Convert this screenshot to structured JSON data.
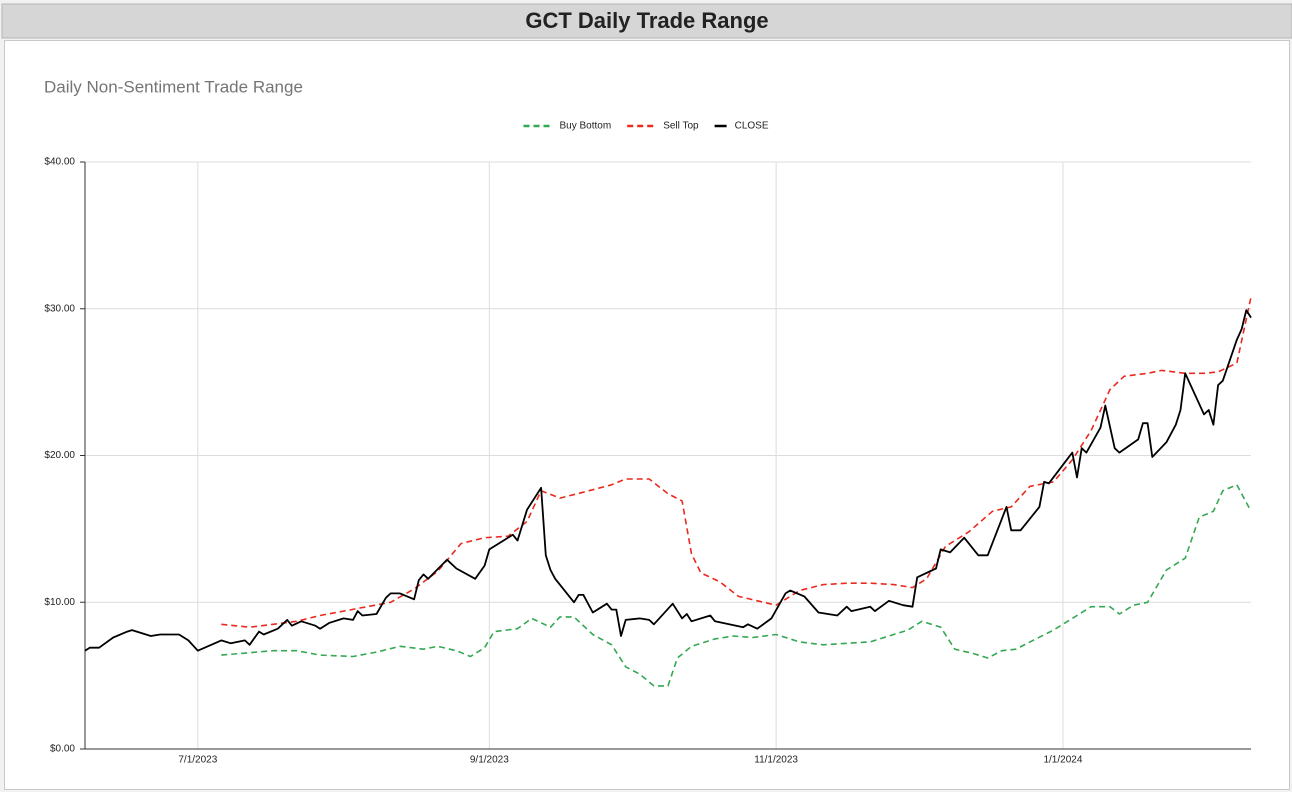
{
  "header": {
    "title": "GCT Daily Trade Range"
  },
  "chart_data": {
    "type": "line",
    "title": "Daily Non-Sentiment Trade Range",
    "legend": "top",
    "grid": true,
    "xlim": [
      "2023-06-07",
      "2024-02-10"
    ],
    "xticks": [
      {
        "value": "2023-07-01",
        "label": "7/1/2023"
      },
      {
        "value": "2023-09-01",
        "label": "9/1/2023"
      },
      {
        "value": "2023-11-01",
        "label": "11/1/2023"
      },
      {
        "value": "2024-01-01",
        "label": "1/1/2024"
      }
    ],
    "ylim": [
      0,
      40
    ],
    "yticks": [
      {
        "value": 0,
        "label": "$0.00"
      },
      {
        "value": 10,
        "label": "$10.00"
      },
      {
        "value": 20,
        "label": "$20.00"
      },
      {
        "value": 30,
        "label": "$30.00"
      },
      {
        "value": 40,
        "label": "$40.00"
      }
    ],
    "series": [
      {
        "name": "Buy Bottom",
        "color": "#34a853",
        "dash": "dashed",
        "x": [
          "2023-07-06",
          "2023-07-17",
          "2023-07-22",
          "2023-07-27",
          "2023-08-03",
          "2023-08-08",
          "2023-08-13",
          "2023-08-18",
          "2023-08-21",
          "2023-08-25",
          "2023-08-28",
          "2023-08-31",
          "2023-09-02",
          "2023-09-07",
          "2023-09-10",
          "2023-09-14",
          "2023-09-16",
          "2023-09-19",
          "2023-09-23",
          "2023-09-27",
          "2023-09-30",
          "2023-10-03",
          "2023-10-06",
          "2023-10-09",
          "2023-10-11",
          "2023-10-14",
          "2023-10-19",
          "2023-10-23",
          "2023-10-27",
          "2023-11-01",
          "2023-11-06",
          "2023-11-11",
          "2023-11-16",
          "2023-11-21",
          "2023-11-26",
          "2023-11-29",
          "2023-12-02",
          "2023-12-06",
          "2023-12-09",
          "2023-12-13",
          "2023-12-16",
          "2023-12-19",
          "2023-12-22",
          "2023-12-25",
          "2023-12-30",
          "2024-01-04",
          "2024-01-07",
          "2024-01-11",
          "2024-01-13",
          "2024-01-16",
          "2024-01-19",
          "2024-01-23",
          "2024-01-27",
          "2024-01-30",
          "2024-02-02",
          "2024-02-04",
          "2024-02-07",
          "2024-02-10"
        ],
        "values": [
          6.4,
          6.7,
          6.7,
          6.4,
          6.3,
          6.6,
          7.0,
          6.8,
          7.0,
          6.7,
          6.3,
          6.9,
          8.0,
          8.2,
          8.9,
          8.3,
          9.0,
          9.0,
          7.8,
          7.1,
          5.6,
          5.1,
          4.3,
          4.3,
          6.2,
          7.0,
          7.5,
          7.7,
          7.6,
          7.8,
          7.3,
          7.1,
          7.2,
          7.3,
          7.8,
          8.1,
          8.7,
          8.3,
          6.8,
          6.5,
          6.2,
          6.7,
          6.8,
          7.3,
          8.1,
          9.1,
          9.7,
          9.7,
          9.2,
          9.8,
          10.0,
          12.2,
          13.0,
          15.8,
          16.2,
          17.6,
          18.0,
          16.2
        ]
      },
      {
        "name": "Sell Top",
        "color": "#ea2a1f",
        "dash": "dashed",
        "x": [
          "2023-07-06",
          "2023-07-12",
          "2023-07-17",
          "2023-07-22",
          "2023-07-27",
          "2023-08-01",
          "2023-08-06",
          "2023-08-11",
          "2023-08-16",
          "2023-08-21",
          "2023-08-26",
          "2023-08-31",
          "2023-09-05",
          "2023-09-09",
          "2023-09-12",
          "2023-09-16",
          "2023-09-21",
          "2023-09-27",
          "2023-09-30",
          "2023-10-05",
          "2023-10-09",
          "2023-10-12",
          "2023-10-14",
          "2023-10-16",
          "2023-10-20",
          "2023-10-24",
          "2023-10-28",
          "2023-11-01",
          "2023-11-06",
          "2023-11-11",
          "2023-11-16",
          "2023-11-21",
          "2023-11-26",
          "2023-11-30",
          "2023-12-03",
          "2023-12-07",
          "2023-12-12",
          "2023-12-17",
          "2023-12-21",
          "2023-12-25",
          "2023-12-30",
          "2024-01-03",
          "2024-01-07",
          "2024-01-11",
          "2024-01-14",
          "2024-01-19",
          "2024-01-22",
          "2024-01-27",
          "2024-01-31",
          "2024-02-03",
          "2024-02-07",
          "2024-02-10"
        ],
        "values": [
          8.5,
          8.3,
          8.5,
          8.7,
          9.1,
          9.4,
          9.7,
          10.0,
          10.9,
          12.1,
          14.0,
          14.4,
          14.5,
          15.5,
          17.6,
          17.1,
          17.5,
          18.0,
          18.4,
          18.4,
          17.4,
          16.9,
          13.3,
          12.0,
          11.4,
          10.4,
          10.1,
          9.8,
          10.8,
          11.2,
          11.3,
          11.3,
          11.2,
          11.0,
          11.6,
          13.8,
          14.8,
          16.2,
          16.5,
          17.9,
          18.2,
          19.7,
          21.7,
          24.5,
          25.4,
          25.6,
          25.8,
          25.6,
          25.6,
          25.7,
          26.3,
          30.8
        ]
      },
      {
        "name": "CLOSE",
        "color": "#000000",
        "dash": "solid",
        "x": [
          "2023-06-07",
          "2023-06-08",
          "2023-06-10",
          "2023-06-13",
          "2023-06-16",
          "2023-06-17",
          "2023-06-21",
          "2023-06-23",
          "2023-06-27",
          "2023-06-29",
          "2023-07-01",
          "2023-07-06",
          "2023-07-08",
          "2023-07-11",
          "2023-07-12",
          "2023-07-14",
          "2023-07-15",
          "2023-07-18",
          "2023-07-20",
          "2023-07-21",
          "2023-07-23",
          "2023-07-26",
          "2023-07-27",
          "2023-07-29",
          "2023-08-01",
          "2023-08-03",
          "2023-08-04",
          "2023-08-05",
          "2023-08-08",
          "2023-08-10",
          "2023-08-11",
          "2023-08-13",
          "2023-08-16",
          "2023-08-17",
          "2023-08-18",
          "2023-08-19",
          "2023-08-23",
          "2023-08-25",
          "2023-08-29",
          "2023-08-31",
          "2023-09-01",
          "2023-09-04",
          "2023-09-06",
          "2023-09-07",
          "2023-09-09",
          "2023-09-12",
          "2023-09-13",
          "2023-09-14",
          "2023-09-15",
          "2023-09-19",
          "2023-09-20",
          "2023-09-21",
          "2023-09-23",
          "2023-09-26",
          "2023-09-27",
          "2023-09-28",
          "2023-09-29",
          "2023-09-30",
          "2023-10-03",
          "2023-10-05",
          "2023-10-06",
          "2023-10-10",
          "2023-10-12",
          "2023-10-13",
          "2023-10-14",
          "2023-10-18",
          "2023-10-19",
          "2023-10-25",
          "2023-10-26",
          "2023-10-28",
          "2023-10-31",
          "2023-11-03",
          "2023-11-04",
          "2023-11-07",
          "2023-11-10",
          "2023-11-14",
          "2023-11-16",
          "2023-11-17",
          "2023-11-21",
          "2023-11-22",
          "2023-11-25",
          "2023-11-28",
          "2023-11-30",
          "2023-12-01",
          "2023-12-05",
          "2023-12-06",
          "2023-12-08",
          "2023-12-11",
          "2023-12-14",
          "2023-12-16",
          "2023-12-20",
          "2023-12-21",
          "2023-12-23",
          "2023-12-27",
          "2023-12-28",
          "2023-12-29",
          "2024-01-03",
          "2024-01-04",
          "2024-01-05",
          "2024-01-06",
          "2024-01-09",
          "2024-01-10",
          "2024-01-12",
          "2024-01-13",
          "2024-01-17",
          "2024-01-18",
          "2024-01-19",
          "2024-01-20",
          "2024-01-23",
          "2024-01-25",
          "2024-01-26",
          "2024-01-27",
          "2024-01-31",
          "2024-02-01",
          "2024-02-02",
          "2024-02-03",
          "2024-02-04",
          "2024-02-07",
          "2024-02-08",
          "2024-02-09",
          "2024-02-10"
        ],
        "values": [
          6.7,
          6.9,
          6.9,
          7.6,
          8.0,
          8.1,
          7.7,
          7.8,
          7.8,
          7.4,
          6.7,
          7.4,
          7.2,
          7.4,
          7.1,
          8.0,
          7.8,
          8.2,
          8.8,
          8.4,
          8.7,
          8.4,
          8.2,
          8.6,
          8.9,
          8.8,
          9.4,
          9.1,
          9.2,
          10.3,
          10.6,
          10.6,
          10.2,
          11.5,
          11.9,
          11.6,
          12.9,
          12.3,
          11.6,
          12.5,
          13.6,
          14.2,
          14.6,
          14.2,
          16.3,
          17.8,
          13.2,
          12.2,
          11.6,
          10.0,
          10.5,
          10.5,
          9.3,
          9.9,
          9.5,
          9.5,
          7.7,
          8.8,
          8.9,
          8.8,
          8.5,
          9.9,
          8.9,
          9.2,
          8.7,
          9.1,
          8.7,
          8.3,
          8.5,
          8.2,
          8.9,
          10.6,
          10.8,
          10.4,
          9.3,
          9.1,
          9.7,
          9.4,
          9.7,
          9.4,
          10.1,
          9.8,
          9.7,
          11.7,
          12.3,
          13.6,
          13.4,
          14.4,
          13.2,
          13.2,
          16.5,
          14.9,
          14.9,
          16.5,
          18.2,
          18.1,
          20.2,
          18.5,
          20.5,
          20.2,
          21.9,
          23.4,
          20.5,
          20.2,
          21.1,
          22.2,
          22.2,
          19.9,
          20.9,
          22.1,
          23.1,
          25.6,
          22.8,
          23.1,
          22.1,
          24.8,
          25.1,
          27.9,
          28.6,
          29.9,
          29.4
        ]
      }
    ]
  }
}
